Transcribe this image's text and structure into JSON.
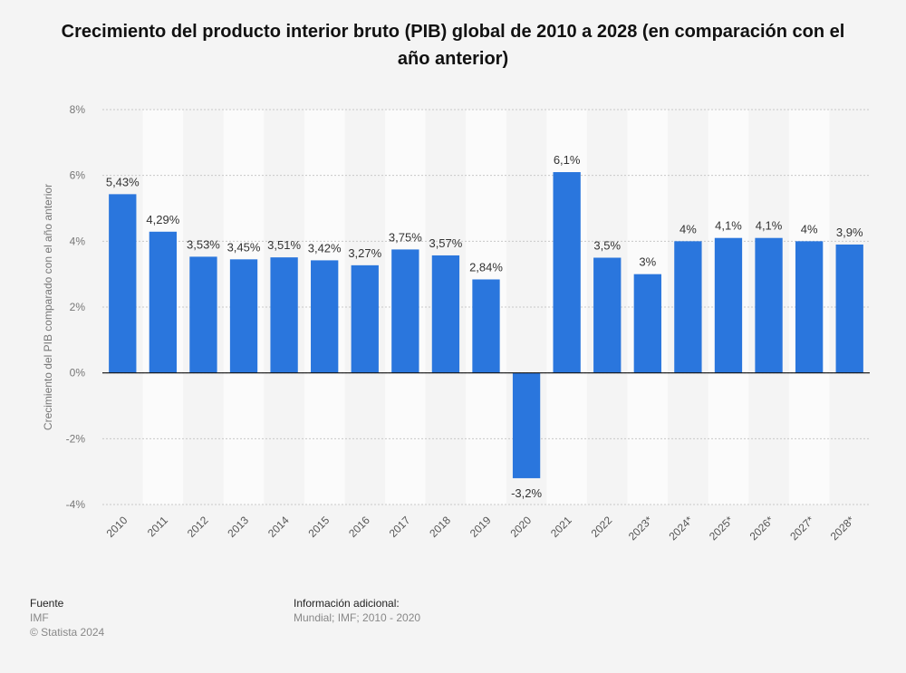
{
  "chart_data": {
    "type": "bar",
    "title": "Crecimiento del producto interior bruto (PIB) global de 2010 a 2028 (en comparación con el año anterior)",
    "y_label": "Crecimiento del PIB comparado con el año anterior",
    "categories": [
      "2010",
      "2011",
      "2012",
      "2013",
      "2014",
      "2015",
      "2016",
      "2017",
      "2018",
      "2019",
      "2020",
      "2021",
      "2022",
      "2023*",
      "2024*",
      "2025*",
      "2026*",
      "2027*",
      "2028*"
    ],
    "values": [
      5.43,
      4.29,
      3.53,
      3.45,
      3.51,
      3.42,
      3.27,
      3.75,
      3.57,
      2.84,
      -3.2,
      6.1,
      3.5,
      3,
      4,
      4.1,
      4.1,
      4,
      3.9
    ],
    "value_labels": [
      "5,43%",
      "4,29%",
      "3,53%",
      "3,45%",
      "3,51%",
      "3,42%",
      "3,27%",
      "3,75%",
      "3,57%",
      "2,84%",
      "-3,2%",
      "6,1%",
      "3,5%",
      "3%",
      "4%",
      "4,1%",
      "4,1%",
      "4%",
      "3,9%"
    ],
    "color": "#2a76dd",
    "ylim": [
      -4,
      8
    ],
    "yticks": [
      {
        "value": -4,
        "label": "-4%"
      },
      {
        "value": -2,
        "label": "-2%"
      },
      {
        "value": 0,
        "label": "0%"
      },
      {
        "value": 2,
        "label": "2%"
      },
      {
        "value": 4,
        "label": "4%"
      },
      {
        "value": 6,
        "label": "6%"
      },
      {
        "value": 8,
        "label": "8%"
      }
    ],
    "grid": true
  },
  "footer": {
    "source_title": "Fuente",
    "source": "IMF",
    "copyright": "© Statista 2024",
    "info_title": "Información adicional:",
    "info": "Mundial; IMF; 2010 - 2020"
  }
}
